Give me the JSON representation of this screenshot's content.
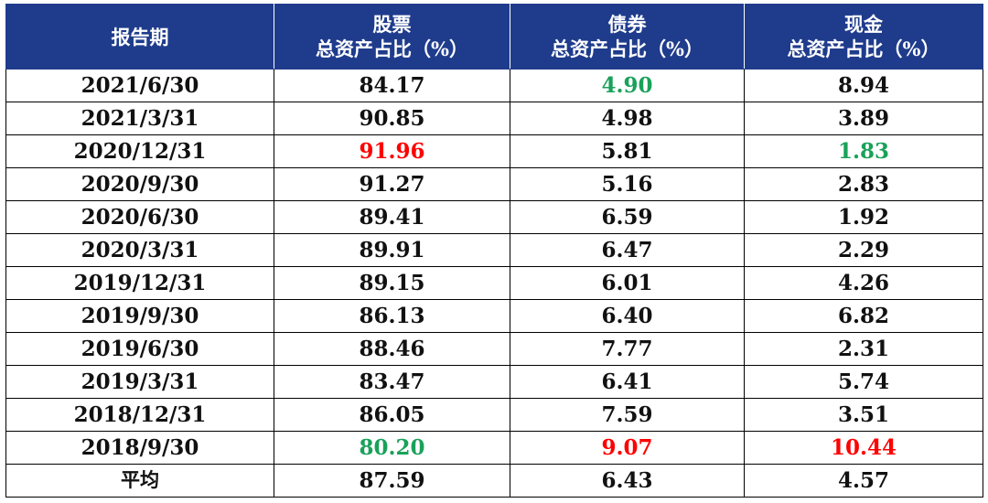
{
  "table": {
    "headers": [
      {
        "line1": "报告期",
        "line2": ""
      },
      {
        "line1": "股票",
        "line2": "总资产占比（%）"
      },
      {
        "line1": "债券",
        "line2": "总资产占比（%）"
      },
      {
        "line1": "现金",
        "line2": "总资产占比（%）"
      }
    ],
    "rows": [
      {
        "date": "2021/6/30",
        "stock": "84.17",
        "bond": "4.90",
        "cash": "8.94"
      },
      {
        "date": "2021/3/31",
        "stock": "90.85",
        "bond": "4.98",
        "cash": "3.89"
      },
      {
        "date": "2020/12/31",
        "stock": "91.96",
        "bond": "5.81",
        "cash": "1.83"
      },
      {
        "date": "2020/9/30",
        "stock": "91.27",
        "bond": "5.16",
        "cash": "2.83"
      },
      {
        "date": "2020/6/30",
        "stock": "89.41",
        "bond": "6.59",
        "cash": "1.92"
      },
      {
        "date": "2020/3/31",
        "stock": "89.91",
        "bond": "6.47",
        "cash": "2.29"
      },
      {
        "date": "2019/12/31",
        "stock": "89.15",
        "bond": "6.01",
        "cash": "4.26"
      },
      {
        "date": "2019/9/30",
        "stock": "86.13",
        "bond": "6.40",
        "cash": "6.82"
      },
      {
        "date": "2019/6/30",
        "stock": "88.46",
        "bond": "7.77",
        "cash": "2.31"
      },
      {
        "date": "2019/3/31",
        "stock": "83.47",
        "bond": "6.41",
        "cash": "5.74"
      },
      {
        "date": "2018/12/31",
        "stock": "86.05",
        "bond": "7.59",
        "cash": "3.51"
      },
      {
        "date": "2018/9/30",
        "stock": "80.20",
        "bond": "9.07",
        "cash": "10.44"
      }
    ],
    "average": {
      "label": "平均",
      "stock": "87.59",
      "bond": "6.43",
      "cash": "4.57"
    }
  },
  "colors": {
    "header_bg": "#1f3c8c",
    "header_text": "#ffffff",
    "max_value": "#ff0000",
    "min_value": "#1aa15a",
    "default_text": "#111111"
  },
  "highlights": {
    "max": {
      "stock": "91.96",
      "bond": "9.07",
      "cash": "10.44"
    },
    "min": {
      "stock": "80.20",
      "bond": "4.90",
      "cash": "1.83"
    }
  }
}
